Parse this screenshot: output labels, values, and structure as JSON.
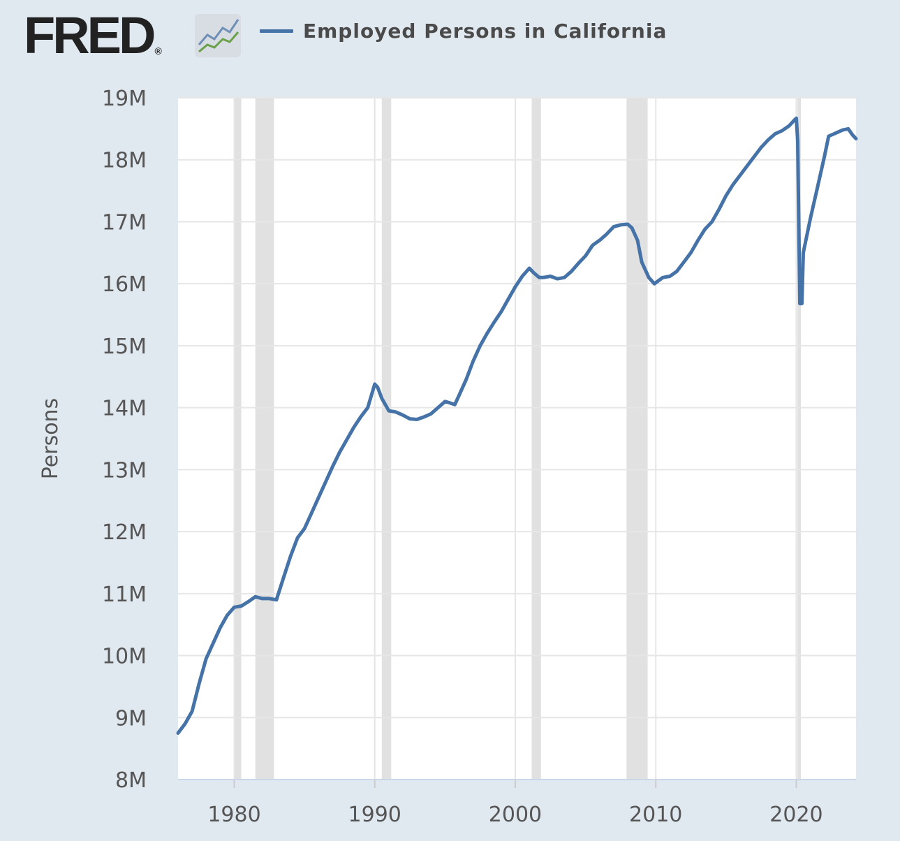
{
  "logo": {
    "text": "FRED",
    "registered": "®"
  },
  "colors": {
    "series": "#4572a7",
    "recession": "#e1e1e1",
    "grid": "#e6e6e6",
    "background": "#e1e9f0",
    "plot": "#ffffff"
  },
  "chart_data": {
    "type": "line",
    "title": "",
    "xlabel": "",
    "ylabel": "Persons",
    "xlim": [
      1976.0,
      2024.25
    ],
    "ylim": [
      8000000,
      19000000
    ],
    "grid": true,
    "legend": "top-left",
    "x_ticks": [
      1980,
      1990,
      2000,
      2010,
      2020
    ],
    "x_tick_labels": [
      "1980",
      "1990",
      "2000",
      "2010",
      "2020"
    ],
    "y_ticks": [
      8000000,
      9000000,
      10000000,
      11000000,
      12000000,
      13000000,
      14000000,
      15000000,
      16000000,
      17000000,
      18000000,
      19000000
    ],
    "y_tick_labels": [
      "8M",
      "9M",
      "10M",
      "11M",
      "12M",
      "13M",
      "14M",
      "15M",
      "16M",
      "17M",
      "18M",
      "19M"
    ],
    "recessions": [
      [
        1980.0,
        1980.5
      ],
      [
        1981.5,
        1982.83
      ],
      [
        1990.5,
        1991.17
      ],
      [
        2001.17,
        2001.83
      ],
      [
        2007.92,
        2009.42
      ],
      [
        2020.08,
        2020.33
      ]
    ],
    "series": [
      {
        "name": "Employed Persons in California",
        "x": [
          1976.0,
          1976.5,
          1977.0,
          1977.5,
          1978.0,
          1978.5,
          1979.0,
          1979.5,
          1980.0,
          1980.5,
          1981.0,
          1981.5,
          1982.0,
          1982.5,
          1983.0,
          1983.5,
          1984.0,
          1984.5,
          1985.0,
          1985.5,
          1986.0,
          1986.5,
          1987.0,
          1987.5,
          1988.0,
          1988.5,
          1989.0,
          1989.5,
          1990.0,
          1990.2,
          1990.5,
          1991.0,
          1991.5,
          1992.0,
          1992.5,
          1993.0,
          1993.5,
          1994.0,
          1994.5,
          1995.0,
          1995.3,
          1995.7,
          1996.0,
          1996.5,
          1997.0,
          1997.5,
          1998.0,
          1998.5,
          1999.0,
          1999.5,
          2000.0,
          2000.5,
          2001.0,
          2001.3,
          2001.7,
          2002.0,
          2002.5,
          2003.0,
          2003.5,
          2004.0,
          2004.5,
          2005.0,
          2005.5,
          2006.0,
          2006.5,
          2007.0,
          2007.5,
          2008.0,
          2008.3,
          2008.7,
          2009.0,
          2009.5,
          2009.9,
          2010.5,
          2011.0,
          2011.5,
          2012.0,
          2012.5,
          2013.0,
          2013.5,
          2014.0,
          2014.5,
          2015.0,
          2015.5,
          2016.0,
          2016.5,
          2017.0,
          2017.5,
          2018.0,
          2018.5,
          2019.0,
          2019.5,
          2019.9,
          2020.0,
          2020.1,
          2020.25,
          2020.4,
          2020.5,
          2021.0,
          2021.5,
          2022.0,
          2022.3,
          2022.7,
          2023.0,
          2023.3,
          2023.7,
          2024.0,
          2024.25
        ],
        "values": [
          8750000,
          8900000,
          9100000,
          9550000,
          9950000,
          10200000,
          10450000,
          10650000,
          10780000,
          10800000,
          10870000,
          10950000,
          10920000,
          10920000,
          10900000,
          11250000,
          11600000,
          11900000,
          12050000,
          12300000,
          12550000,
          12800000,
          13050000,
          13280000,
          13480000,
          13680000,
          13850000,
          14000000,
          14380000,
          14330000,
          14150000,
          13950000,
          13930000,
          13880000,
          13820000,
          13810000,
          13850000,
          13900000,
          14000000,
          14100000,
          14080000,
          14050000,
          14200000,
          14450000,
          14750000,
          15000000,
          15200000,
          15380000,
          15550000,
          15750000,
          15950000,
          16120000,
          16250000,
          16180000,
          16100000,
          16100000,
          16120000,
          16080000,
          16100000,
          16200000,
          16330000,
          16450000,
          16620000,
          16700000,
          16800000,
          16920000,
          16950000,
          16960000,
          16900000,
          16700000,
          16350000,
          16100000,
          16000000,
          16100000,
          16120000,
          16200000,
          16350000,
          16500000,
          16700000,
          16880000,
          17000000,
          17200000,
          17420000,
          17600000,
          17750000,
          17900000,
          18050000,
          18200000,
          18320000,
          18420000,
          18470000,
          18550000,
          18650000,
          18670000,
          18300000,
          15680000,
          15680000,
          16500000,
          17050000,
          17550000,
          18050000,
          18380000,
          18420000,
          18450000,
          18480000,
          18500000,
          18400000,
          18340000
        ]
      }
    ]
  }
}
